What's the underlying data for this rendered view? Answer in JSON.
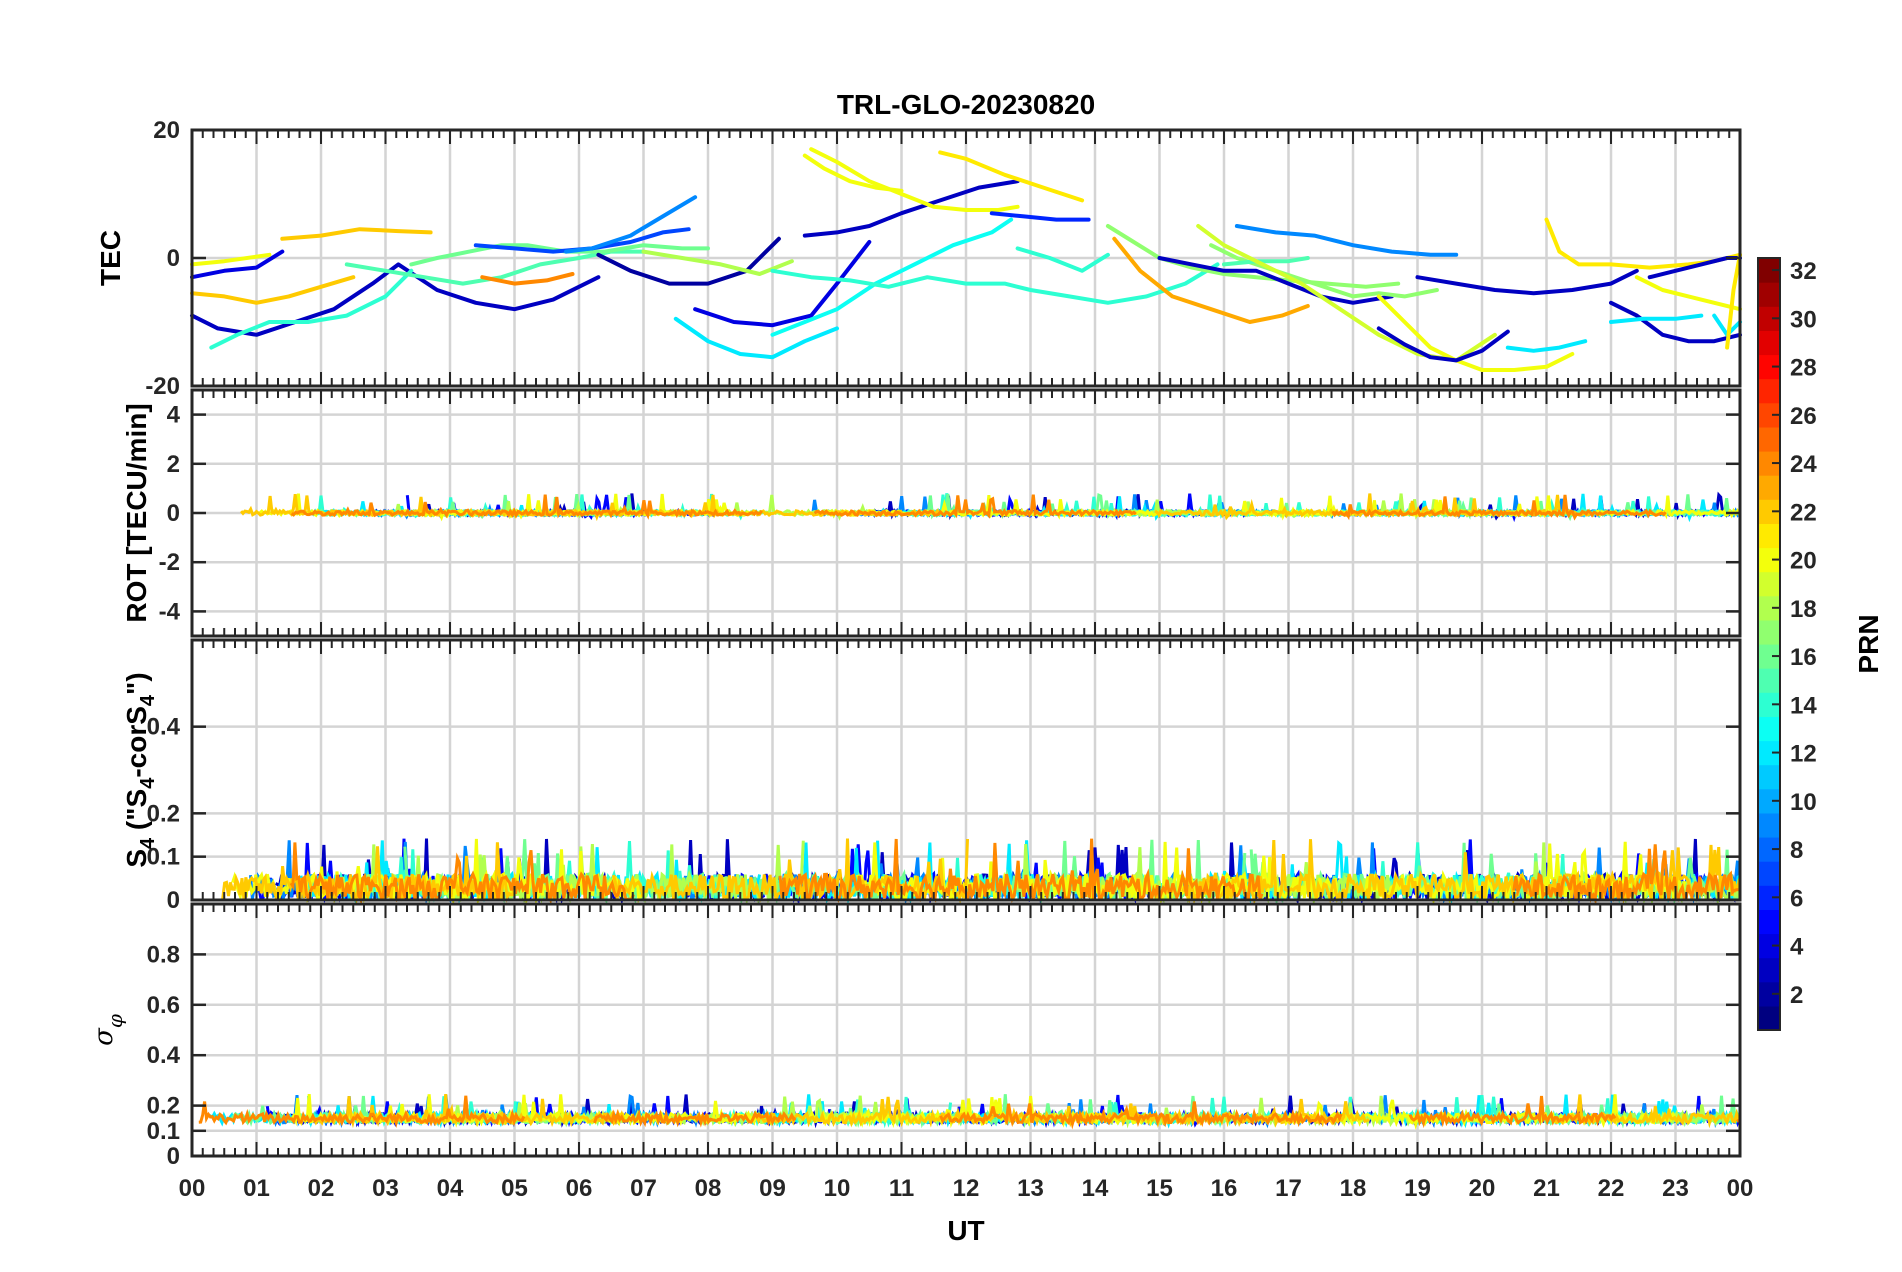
{
  "chart_data": {
    "type": "line",
    "title": "TRL-GLO-20230820",
    "xlabel": "UT",
    "x_tick_labels": [
      "00",
      "01",
      "02",
      "03",
      "04",
      "05",
      "06",
      "07",
      "08",
      "09",
      "10",
      "11",
      "12",
      "13",
      "14",
      "15",
      "16",
      "17",
      "18",
      "19",
      "20",
      "21",
      "22",
      "23",
      "00"
    ],
    "xlim_hours": [
      0,
      24
    ],
    "colorbar": {
      "label": "PRN",
      "range": [
        1,
        32
      ],
      "tick_labels": [
        "2",
        "4",
        "6",
        "8",
        "10",
        "12",
        "14",
        "16",
        "18",
        "20",
        "22",
        "24",
        "26",
        "28",
        "30",
        "32"
      ],
      "colormap": "jet"
    },
    "panels": [
      {
        "id": "tec",
        "ylabel": "TEC",
        "ylim": [
          -20,
          20
        ],
        "y_ticks": [
          20,
          0,
          -20
        ],
        "y_tick_labels": [
          "20",
          "0",
          "-20"
        ],
        "series": [
          {
            "prn": 4,
            "x": [
              0.0,
              0.5,
              1.0,
              1.4
            ],
            "y": [
              -3,
              -2,
              -1.5,
              1
            ]
          },
          {
            "prn": 20,
            "x": [
              0.0,
              0.5,
              1.2
            ],
            "y": [
              -1,
              -0.5,
              0.5
            ]
          },
          {
            "prn": 22,
            "x": [
              0.0,
              0.5,
              1.0,
              1.5,
              2.0,
              2.5
            ],
            "y": [
              -5.5,
              -6,
              -7,
              -6,
              -4.5,
              -3
            ]
          },
          {
            "prn": 3,
            "x": [
              0.0,
              0.4,
              1.0,
              1.6,
              2.2,
              2.8,
              3.2,
              3.8,
              4.4,
              5.0,
              5.6,
              6.3
            ],
            "y": [
              -9,
              -11,
              -12,
              -10,
              -8,
              -4,
              -1,
              -5,
              -7,
              -8,
              -6.5,
              -3
            ]
          },
          {
            "prn": 14,
            "x": [
              0.3,
              0.7,
              1.2,
              1.8,
              2.4,
              3.0,
              3.4
            ],
            "y": [
              -14,
              -12,
              -10,
              -10,
              -9,
              -6,
              -2
            ]
          },
          {
            "prn": 22,
            "x": [
              1.4,
              2.0,
              2.6,
              3.2,
              3.7
            ],
            "y": [
              3,
              3.5,
              4.5,
              4.2,
              4
            ]
          },
          {
            "prn": 15,
            "x": [
              2.4,
              3.0,
              3.6,
              4.2,
              4.8,
              5.4,
              6.0,
              6.5,
              7.0
            ],
            "y": [
              -1,
              -2,
              -3,
              -4,
              -3,
              -1,
              0,
              1,
              1
            ]
          },
          {
            "prn": 16,
            "x": [
              3.4,
              3.8,
              4.3,
              4.8,
              5.2,
              5.8,
              6.4,
              7.0,
              7.6,
              8.0
            ],
            "y": [
              -1,
              0,
              1,
              2,
              2,
              1,
              1,
              2,
              1.5,
              1.5
            ]
          },
          {
            "prn": 24,
            "x": [
              4.5,
              5.0,
              5.5,
              5.9
            ],
            "y": [
              -3,
              -4,
              -3.5,
              -2.5
            ]
          },
          {
            "prn": 7,
            "x": [
              4.4,
              5.0,
              5.6,
              6.2,
              6.8,
              7.3,
              7.7
            ],
            "y": [
              2,
              1.5,
              1,
              1.5,
              2.5,
              4,
              4.5
            ]
          },
          {
            "prn": 9,
            "x": [
              5.8,
              6.2,
              6.8,
              7.3,
              7.8
            ],
            "y": [
              1,
              1.5,
              3.5,
              6.5,
              9.5
            ]
          },
          {
            "prn": 2,
            "x": [
              6.3,
              6.8,
              7.4,
              8.0,
              8.6,
              9.1
            ],
            "y": [
              0.5,
              -2,
              -4,
              -4,
              -2,
              3
            ]
          },
          {
            "prn": 18,
            "x": [
              7.0,
              7.6,
              8.2,
              8.8,
              9.3
            ],
            "y": [
              1,
              0,
              -1,
              -2.5,
              -0.5
            ]
          },
          {
            "prn": 12,
            "x": [
              7.5,
              8.0,
              8.5,
              9.0,
              9.5,
              10.0
            ],
            "y": [
              -9.5,
              -13,
              -15,
              -15.5,
              -13,
              -11
            ]
          },
          {
            "prn": 4,
            "x": [
              7.8,
              8.4,
              9.0,
              9.6,
              10.0,
              10.5
            ],
            "y": [
              -8,
              -10,
              -10.5,
              -9,
              -4,
              2.5
            ]
          },
          {
            "prn": 13,
            "x": [
              9.0,
              9.5,
              10.0,
              10.6,
              11.2,
              11.8,
              12.4,
              12.7
            ],
            "y": [
              -12,
              -10,
              -8,
              -4,
              -1,
              2,
              4,
              6
            ]
          },
          {
            "prn": 3,
            "x": [
              9.5,
              10.0,
              10.5,
              11.0,
              11.6,
              12.2,
              12.8
            ],
            "y": [
              3.5,
              4,
              5,
              7,
              9,
              11,
              12
            ]
          },
          {
            "prn": 20,
            "x": [
              9.5,
              9.8,
              10.2,
              10.6,
              11.0
            ],
            "y": [
              16,
              14,
              12,
              11,
              10.5
            ]
          },
          {
            "prn": 20,
            "x": [
              9.6,
              10.0,
              10.5,
              11.0,
              11.5,
              12.0,
              12.5,
              12.8
            ],
            "y": [
              17,
              15,
              12,
              10,
              8,
              7.5,
              7.5,
              8
            ]
          },
          {
            "prn": 21,
            "x": [
              11.6,
              12.0,
              12.6,
              13.2,
              13.8
            ],
            "y": [
              16.5,
              15.5,
              13,
              11,
              9
            ]
          },
          {
            "prn": 14,
            "x": [
              9.0,
              9.6,
              10.2,
              10.8,
              11.4,
              12.0,
              12.6,
              13.0,
              13.6,
              14.2,
              14.8,
              15.4,
              15.9
            ],
            "y": [
              -2,
              -3,
              -3.5,
              -4.5,
              -3,
              -4,
              -4,
              -5,
              -6,
              -7,
              -6,
              -4,
              -1
            ]
          },
          {
            "prn": 6,
            "x": [
              12.4,
              12.9,
              13.4,
              13.9
            ],
            "y": [
              7,
              6.5,
              6,
              6
            ]
          },
          {
            "prn": 14,
            "x": [
              12.8,
              13.3,
              13.8,
              14.2
            ],
            "y": [
              1.5,
              0,
              -2,
              0.5
            ]
          },
          {
            "prn": 17,
            "x": [
              14.2,
              14.6,
              15.0,
              15.5,
              16.0,
              16.5,
              17.0,
              17.6,
              18.2,
              18.7
            ],
            "y": [
              5,
              2.5,
              0,
              -1.5,
              -2.5,
              -3,
              -3.5,
              -4,
              -4.5,
              -4
            ]
          },
          {
            "prn": 23,
            "x": [
              14.3,
              14.7,
              15.2,
              15.8,
              16.4,
              16.9,
              17.3
            ],
            "y": [
              3,
              -2,
              -6,
              -8,
              -10,
              -9,
              -7.5
            ]
          },
          {
            "prn": 3,
            "x": [
              15.0,
              15.5,
              16.0,
              16.5,
              17.0,
              17.5,
              18.0,
              18.6
            ],
            "y": [
              0,
              -1,
              -2,
              -2,
              -4,
              -6,
              -7,
              -6
            ]
          },
          {
            "prn": 17,
            "x": [
              15.8,
              16.2,
              16.8,
              17.4,
              18.0,
              18.4,
              18.8,
              19.3
            ],
            "y": [
              2,
              0,
              -2,
              -4,
              -6,
              -5.5,
              -6,
              -5
            ]
          },
          {
            "prn": 15,
            "x": [
              16.0,
              16.5,
              17.0,
              17.3
            ],
            "y": [
              -1,
              -0.5,
              -0.5,
              0
            ]
          },
          {
            "prn": 19,
            "x": [
              15.6,
              16.0,
              16.6,
              17.2,
              17.8,
              18.4,
              19.0,
              19.6,
              20.2
            ],
            "y": [
              5,
              2,
              -1,
              -4,
              -8,
              -12,
              -15,
              -16,
              -12
            ]
          },
          {
            "prn": 9,
            "x": [
              16.2,
              16.8,
              17.4,
              18.0,
              18.6,
              19.2,
              19.6
            ],
            "y": [
              5,
              4,
              3.5,
              2,
              1,
              0.5,
              0.5
            ]
          },
          {
            "prn": 20,
            "x": [
              18.4,
              18.8,
              19.2,
              19.6,
              20.0,
              20.5,
              21.0,
              21.4
            ],
            "y": [
              -6,
              -10,
              -14,
              -16,
              -17.5,
              -17.5,
              -17,
              -15
            ]
          },
          {
            "prn": 3,
            "x": [
              18.4,
              18.8,
              19.2,
              19.6,
              20.0,
              20.4
            ],
            "y": [
              -11,
              -13.5,
              -15.5,
              -16,
              -14.5,
              -11.5
            ]
          },
          {
            "prn": 3,
            "x": [
              19.0,
              19.6,
              20.2,
              20.8,
              21.4,
              22.0,
              22.4
            ],
            "y": [
              -3,
              -4,
              -5,
              -5.5,
              -5,
              -4,
              -2
            ]
          },
          {
            "prn": 12,
            "x": [
              20.4,
              20.8,
              21.2,
              21.6
            ],
            "y": [
              -14,
              -14.5,
              -14,
              -13
            ]
          },
          {
            "prn": 21,
            "x": [
              21.0,
              21.2,
              21.5,
              22.0,
              22.6,
              23.2,
              23.6,
              24.0
            ],
            "y": [
              6,
              1,
              -1,
              -1,
              -1.5,
              -1,
              -0.5,
              0.5
            ]
          },
          {
            "prn": 3,
            "x": [
              22.0,
              22.4,
              22.8,
              23.2,
              23.6,
              24.0
            ],
            "y": [
              -7,
              -9,
              -12,
              -13,
              -13,
              -12
            ]
          },
          {
            "prn": 12,
            "x": [
              22.0,
              22.5,
              23.0,
              23.4
            ],
            "y": [
              -10,
              -9.5,
              -9.5,
              -9
            ]
          },
          {
            "prn": 20,
            "x": [
              22.4,
              22.8,
              23.2,
              23.6,
              24.0
            ],
            "y": [
              -3,
              -5,
              -6,
              -7,
              -8
            ]
          },
          {
            "prn": 3,
            "x": [
              22.6,
              23.0,
              23.4,
              23.8,
              24.0
            ],
            "y": [
              -3,
              -2,
              -1,
              0,
              0
            ]
          },
          {
            "prn": 12,
            "x": [
              23.6,
              23.8,
              24.0
            ],
            "y": [
              -9,
              -12,
              -10
            ]
          },
          {
            "prn": 21,
            "x": [
              23.8,
              23.9,
              24.0
            ],
            "y": [
              -14,
              -5,
              0.5
            ]
          }
        ]
      },
      {
        "id": "rot",
        "ylabel": "ROT [TECU/min]",
        "ylim": [
          -5,
          5
        ],
        "y_ticks": [
          4,
          2,
          0,
          -2,
          -4
        ],
        "y_tick_labels": [
          "4",
          "2",
          "0",
          "-2",
          "-4"
        ],
        "noise": {
          "baseline": 0,
          "amplitude": 0.15,
          "max_excursion": 1.0
        }
      },
      {
        "id": "s4",
        "ylabel": "S4 (\"S4-corS4\")",
        "ylim": [
          0,
          0.6
        ],
        "y_ticks": [
          0.4,
          0.2,
          0.1,
          0
        ],
        "y_tick_labels": [
          "0.4",
          "0.2",
          "0.1",
          "0"
        ],
        "noise": {
          "baseline": 0.03,
          "amplitude": 0.05,
          "max_excursion": 0.17
        }
      },
      {
        "id": "sigma_phi",
        "ylabel": "σφ",
        "ylim": [
          0,
          1.0
        ],
        "y_ticks": [
          0.8,
          0.6,
          0.4,
          0.2,
          0.1,
          0
        ],
        "y_tick_labels": [
          "0.8",
          "0.6",
          "0.4",
          "0.2",
          "0.1",
          "0"
        ],
        "noise": {
          "baseline": 0.15,
          "amplitude": 0.03,
          "max_excursion": 0.27
        }
      }
    ]
  }
}
